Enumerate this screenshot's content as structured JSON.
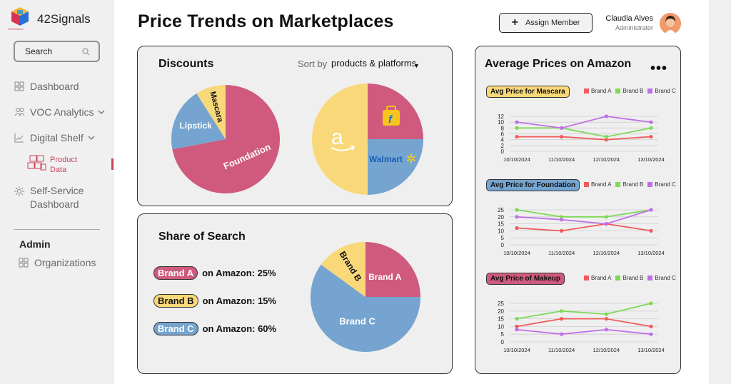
{
  "app": {
    "name": "42Signals",
    "logo_caption": "42SIGNALS"
  },
  "sidebar": {
    "search_label": "Search",
    "items": [
      {
        "label": "Dashboard",
        "icon": "grid-icon"
      },
      {
        "label": "VOC Analytics",
        "icon": "users-icon"
      },
      {
        "label": "Digital Shelf",
        "icon": "trend-icon"
      },
      {
        "label": "Self-Service Dashboard",
        "icon": "sparkle-icon"
      }
    ],
    "sub_item": {
      "label_line1": "Product",
      "label_line2": "Data",
      "icon": "boxes-icon"
    },
    "admin_title": "Admin",
    "admin_items": [
      {
        "label": "Organizations",
        "icon": "grid-icon"
      }
    ]
  },
  "header": {
    "title": "Price Trends on Marketplaces",
    "assign_button": "Assign Member",
    "user_name": "Claudia Alves",
    "user_role": "Administrator"
  },
  "discounts": {
    "title": "Discounts",
    "sort_label": "Sort by",
    "sort_value": "products & platforms",
    "products_pie": [
      {
        "label": "Foundation",
        "value": 72,
        "color": "#cf5a7e"
      },
      {
        "label": "Lipstick",
        "value": 19,
        "color": "#74a4cf"
      },
      {
        "label": "Mascara",
        "value": 9,
        "color": "#f9d87a"
      }
    ],
    "platforms_pie": [
      {
        "label": "flipkart",
        "value": 25,
        "color": "#cf5a7e"
      },
      {
        "label": "Walmart",
        "value": 25,
        "color": "#74a4cf"
      },
      {
        "label": "amazon",
        "value": 50,
        "color": "#f9d87a"
      }
    ]
  },
  "share_of_search": {
    "title": "Share of Search",
    "rows": [
      {
        "brand": "Brand A",
        "text": "on Amazon: 25%",
        "color": "#cf5a7e",
        "text_color": "#ffffff"
      },
      {
        "brand": "Brand B",
        "text": "on Amazon: 15%",
        "color": "#f9d87a",
        "text_color": "#111111"
      },
      {
        "brand": "Brand C",
        "text": "on Amazon: 60%",
        "color": "#74a4cf",
        "text_color": "#ffffff"
      }
    ],
    "pie": [
      {
        "label": "Brand A",
        "value": 25,
        "color": "#cf5a7e"
      },
      {
        "label": "Brand C",
        "value": 60,
        "color": "#74a4cf"
      },
      {
        "label": "Brand B",
        "value": 15,
        "color": "#f9d87a"
      }
    ]
  },
  "avg_prices": {
    "title": "Average Prices on Amazon",
    "legend": [
      "Brand A",
      "Brand B",
      "Brand C"
    ]
  },
  "chart_data": [
    {
      "type": "line",
      "title": "Avg Price for Mascara",
      "title_color": "#f9d87a",
      "x": [
        "10/10/2024",
        "11/10/2024",
        "12/10/2024",
        "13/10/2024"
      ],
      "ylim": [
        0,
        12
      ],
      "yticks": [
        0,
        2,
        4,
        6,
        8,
        10,
        12
      ],
      "series": [
        {
          "name": "Brand A",
          "color": "#f25b5b",
          "values": [
            5,
            5,
            4,
            5
          ]
        },
        {
          "name": "Brand B",
          "color": "#7ed957",
          "values": [
            8,
            8,
            5,
            8
          ]
        },
        {
          "name": "Brand C",
          "color": "#c06ee8",
          "values": [
            10,
            8,
            12,
            10
          ]
        }
      ]
    },
    {
      "type": "line",
      "title": "Avg Price for Foundation",
      "title_color": "#74a4cf",
      "x": [
        "10/10/2024",
        "11/10/2024",
        "12/10/2024",
        "13/10/2024"
      ],
      "ylim": [
        0,
        25
      ],
      "yticks": [
        0,
        5,
        10,
        15,
        20,
        25
      ],
      "series": [
        {
          "name": "Brand A",
          "color": "#f25b5b",
          "values": [
            12,
            10,
            15,
            10
          ]
        },
        {
          "name": "Brand B",
          "color": "#7ed957",
          "values": [
            25,
            20,
            20,
            25
          ]
        },
        {
          "name": "Brand C",
          "color": "#c06ee8",
          "values": [
            20,
            18,
            15,
            25
          ]
        }
      ]
    },
    {
      "type": "line",
      "title": "Avg Price of Makeup",
      "title_color": "#cf5a7e",
      "x": [
        "10/10/2024",
        "11/10/2024",
        "12/10/2024",
        "13/10/2024"
      ],
      "ylim": [
        0,
        25
      ],
      "yticks": [
        0,
        5,
        10,
        15,
        20,
        25
      ],
      "series": [
        {
          "name": "Brand A",
          "color": "#f25b5b",
          "values": [
            10,
            15,
            15,
            10
          ]
        },
        {
          "name": "Brand B",
          "color": "#7ed957",
          "values": [
            15,
            20,
            18,
            25
          ]
        },
        {
          "name": "Brand C",
          "color": "#c06ee8",
          "values": [
            8,
            5,
            8,
            5
          ]
        }
      ]
    }
  ]
}
